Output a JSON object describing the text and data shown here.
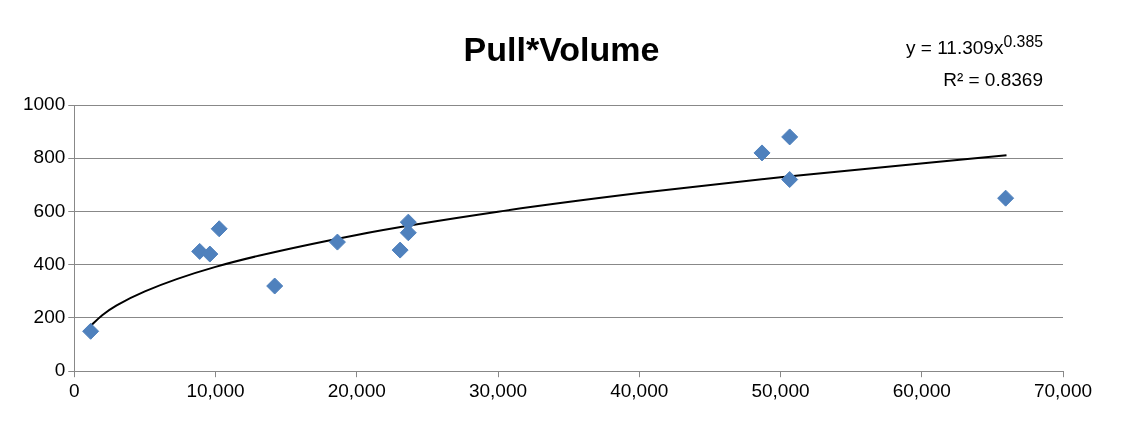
{
  "chart_data": {
    "type": "scatter",
    "title": "Pull*Volume",
    "marker": "diamond",
    "grid": "y",
    "xlim": [
      0,
      70000
    ],
    "xticks": [
      {
        "value": 0,
        "label": "0"
      },
      {
        "value": 10000,
        "label": "10,000"
      },
      {
        "value": 20000,
        "label": "20,000"
      },
      {
        "value": 30000,
        "label": "30,000"
      },
      {
        "value": 40000,
        "label": "40,000"
      },
      {
        "value": 50000,
        "label": "50,000"
      },
      {
        "value": 60000,
        "label": "60,000"
      },
      {
        "value": 70000,
        "label": "70,000"
      }
    ],
    "ylim": [
      0,
      1000
    ],
    "yticks": [
      0,
      200,
      400,
      600,
      800,
      1000
    ],
    "annotations": [
      "y = 11.309x$^{0.385}$",
      "R² = 0.8369"
    ],
    "series": [
      {
        "type": "scatter",
        "color": "#4f81bd",
        "x": [
          1160,
          8880,
          9600,
          10260,
          14190,
          18630,
          23070,
          23650,
          23650,
          48690,
          50650,
          50650,
          65940
        ],
        "values": [
          150,
          450,
          440,
          535,
          320,
          485,
          455,
          560,
          520,
          820,
          880,
          720,
          650
        ]
      },
      {
        "type": "line",
        "color": "#000000",
        "marker": "none",
        "x": [
          1000,
          2000,
          3000,
          5000,
          10000,
          20000,
          30000,
          40000,
          50000,
          66000
        ],
        "values": [
          162,
          211,
          247,
          300,
          392,
          512,
          599,
          669,
          729,
          811
        ]
      }
    ]
  }
}
